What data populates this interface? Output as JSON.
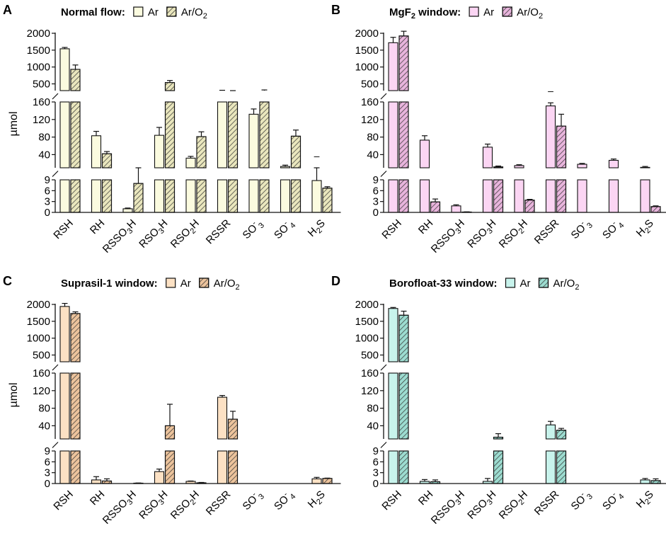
{
  "figure": {
    "ylabel": "µmol"
  },
  "chart_data": [
    {
      "panel": "A",
      "type": "bar",
      "title": "Normal flow:",
      "title_sub": "",
      "colors": {
        "ar": "#fbfbdf",
        "aro2": "#e9e6bd"
      },
      "legend": {
        "ar": "Ar",
        "aro2_main": "Ar/O",
        "aro2_sub": "2"
      },
      "categories": [
        {
          "main": "RSH",
          "sub": "",
          "tail": "",
          "sup": ""
        },
        {
          "main": "RH",
          "sub": "",
          "tail": "",
          "sup": ""
        },
        {
          "main": "RSSO",
          "sub": "3",
          "tail": "H",
          "sup": ""
        },
        {
          "main": "RSO",
          "sub": "3",
          "tail": "H",
          "sup": ""
        },
        {
          "main": "RSO",
          "sub": "2",
          "tail": "H",
          "sup": ""
        },
        {
          "main": "RSSR",
          "sub": "",
          "tail": "",
          "sup": ""
        },
        {
          "main": "SO",
          "sub": "3",
          "tail": "",
          "sup": "-"
        },
        {
          "main": "SO",
          "sub": "4",
          "tail": "",
          "sup": "-"
        },
        {
          "main": "H",
          "sub": "2",
          "tail": "S",
          "sup": ""
        }
      ],
      "series": [
        {
          "name": "Ar",
          "values": [
            1540,
            83,
            1,
            84,
            32,
            290,
            132,
            13,
            8.8
          ],
          "errors": [
            40,
            10,
            0.2,
            18,
            4,
            20,
            12,
            3,
            0.3
          ],
          "annotations": [
            null,
            null,
            null,
            null,
            null,
            null,
            null,
            null,
            "–"
          ]
        },
        {
          "name": "Ar/O2",
          "values": [
            930,
            42,
            8,
            540,
            81,
            265,
            300,
            82,
            6.7
          ],
          "errors": [
            130,
            5,
            1.1,
            60,
            11,
            35,
            20,
            14,
            0.4
          ],
          "annotations": [
            null,
            null,
            null,
            null,
            null,
            null,
            null,
            null,
            null
          ]
        }
      ]
    },
    {
      "panel": "B",
      "type": "bar",
      "title": "MgF",
      "title_sub": "2",
      "title_tail": " window:",
      "colors": {
        "ar": "#fbd5f3",
        "aro2": "#e8b4dc"
      },
      "legend": {
        "ar": "Ar",
        "aro2_main": "Ar/O",
        "aro2_sub": "2"
      },
      "categories": [
        {
          "main": "RSH",
          "sub": "",
          "tail": "",
          "sup": ""
        },
        {
          "main": "RH",
          "sub": "",
          "tail": "",
          "sup": ""
        },
        {
          "main": "RSSO",
          "sub": "3",
          "tail": "H",
          "sup": ""
        },
        {
          "main": "RSO",
          "sub": "3",
          "tail": "H",
          "sup": ""
        },
        {
          "main": "RSO",
          "sub": "2",
          "tail": "H",
          "sup": ""
        },
        {
          "main": "RSSR",
          "sub": "",
          "tail": "",
          "sup": ""
        },
        {
          "main": "SO",
          "sub": "3",
          "tail": "",
          "sup": "-"
        },
        {
          "main": "SO",
          "sub": "4",
          "tail": "",
          "sup": "-"
        },
        {
          "main": "H",
          "sub": "2",
          "tail": "S",
          "sup": ""
        }
      ],
      "series": [
        {
          "name": "Ar",
          "values": [
            1720,
            73,
            1.8,
            57,
            15,
            151,
            18,
            27,
            11
          ],
          "errors": [
            160,
            10,
            0.3,
            7,
            2,
            7,
            2,
            3,
            2
          ],
          "annotations": [
            null,
            null,
            null,
            null,
            null,
            "–",
            null,
            null,
            null
          ]
        },
        {
          "name": "Ar/O2",
          "values": [
            1920,
            2.9,
            0.1,
            12,
            3.4,
            105,
            0,
            0,
            1.6
          ],
          "errors": [
            140,
            0.8,
            0.05,
            2,
            0.2,
            27,
            0,
            0,
            0.2
          ],
          "annotations": [
            null,
            null,
            null,
            null,
            null,
            null,
            null,
            null,
            null
          ]
        }
      ]
    },
    {
      "panel": "C",
      "type": "bar",
      "title": "Suprasil-1 window:",
      "title_sub": "",
      "colors": {
        "ar": "#fce1c4",
        "aro2": "#ecc39c"
      },
      "legend": {
        "ar": "Ar",
        "aro2_main": "Ar/O",
        "aro2_sub": "2"
      },
      "categories": [
        {
          "main": "RSH",
          "sub": "",
          "tail": "",
          "sup": ""
        },
        {
          "main": "RH",
          "sub": "",
          "tail": "",
          "sup": ""
        },
        {
          "main": "RSSO",
          "sub": "3",
          "tail": "H",
          "sup": ""
        },
        {
          "main": "RSO",
          "sub": "3",
          "tail": "H",
          "sup": ""
        },
        {
          "main": "RSO",
          "sub": "2",
          "tail": "H",
          "sup": ""
        },
        {
          "main": "RSSR",
          "sub": "",
          "tail": "",
          "sup": ""
        },
        {
          "main": "SO",
          "sub": "3",
          "tail": "",
          "sup": "-"
        },
        {
          "main": "SO",
          "sub": "4",
          "tail": "",
          "sup": "-"
        },
        {
          "main": "H",
          "sub": "2",
          "tail": "S",
          "sup": ""
        }
      ],
      "series": [
        {
          "name": "Ar",
          "values": [
            1940,
            1,
            0,
            3.3,
            0.6,
            105,
            0,
            0,
            1.3
          ],
          "errors": [
            90,
            0.9,
            0,
            0.7,
            0.1,
            4,
            0,
            0,
            0.4
          ],
          "annotations": [
            null,
            null,
            null,
            null,
            null,
            null,
            null,
            null,
            null
          ]
        },
        {
          "name": "Ar/O2",
          "values": [
            1730,
            0.7,
            0.1,
            40,
            0.2,
            55,
            0,
            0,
            1.4
          ],
          "errors": [
            50,
            0.6,
            0.05,
            49,
            0.1,
            18,
            0,
            0,
            0.1
          ],
          "annotations": [
            null,
            null,
            null,
            null,
            null,
            null,
            null,
            null,
            null
          ]
        }
      ]
    },
    {
      "panel": "D",
      "type": "bar",
      "title": "Borofloat-33 window:",
      "title_sub": "",
      "colors": {
        "ar": "#c8f3ec",
        "aro2": "#9cdcd0"
      },
      "legend": {
        "ar": "Ar",
        "aro2_main": "Ar/O",
        "aro2_sub": "2"
      },
      "categories": [
        {
          "main": "RSH",
          "sub": "",
          "tail": "",
          "sup": ""
        },
        {
          "main": "RH",
          "sub": "",
          "tail": "",
          "sup": ""
        },
        {
          "main": "RSSO",
          "sub": "3",
          "tail": "H",
          "sup": ""
        },
        {
          "main": "RSO",
          "sub": "3",
          "tail": "H",
          "sup": ""
        },
        {
          "main": "RSO",
          "sub": "2",
          "tail": "H",
          "sup": ""
        },
        {
          "main": "RSSR",
          "sub": "",
          "tail": "",
          "sup": ""
        },
        {
          "main": "SO",
          "sub": "3",
          "tail": "",
          "sup": "-"
        },
        {
          "main": "SO",
          "sub": "4",
          "tail": "",
          "sup": "-"
        },
        {
          "main": "H",
          "sub": "2",
          "tail": "S",
          "sup": ""
        }
      ],
      "series": [
        {
          "name": "Ar",
          "values": [
            1880,
            0.6,
            0,
            0.6,
            0,
            42,
            0,
            0,
            1.0
          ],
          "errors": [
            30,
            0.5,
            0,
            0.8,
            0,
            8,
            0,
            0,
            0.4
          ],
          "annotations": [
            null,
            null,
            null,
            null,
            null,
            null,
            null,
            null,
            null
          ]
        },
        {
          "name": "Ar/O2",
          "values": [
            1680,
            0.5,
            0,
            14,
            0,
            30,
            0,
            0,
            0.8
          ],
          "errors": [
            120,
            0.5,
            0,
            8,
            0,
            4,
            0,
            0,
            0.5
          ],
          "annotations": [
            null,
            null,
            null,
            null,
            null,
            null,
            null,
            null,
            null
          ]
        }
      ]
    }
  ],
  "axis": {
    "segments": [
      {
        "name": "lower",
        "range": [
          0,
          9
        ],
        "ticks": [
          0,
          3,
          6,
          9
        ]
      },
      {
        "name": "middle",
        "range": [
          10,
          160
        ],
        "ticks": [
          40,
          80,
          120,
          160
        ]
      },
      {
        "name": "upper",
        "range": [
          300,
          2000
        ],
        "ticks": [
          500,
          1000,
          1500,
          2000
        ]
      }
    ],
    "tick_labels": [
      "0",
      "3",
      "6",
      "9",
      "40",
      "80",
      "120",
      "160",
      "500",
      "1000",
      "1500",
      "2000"
    ]
  }
}
